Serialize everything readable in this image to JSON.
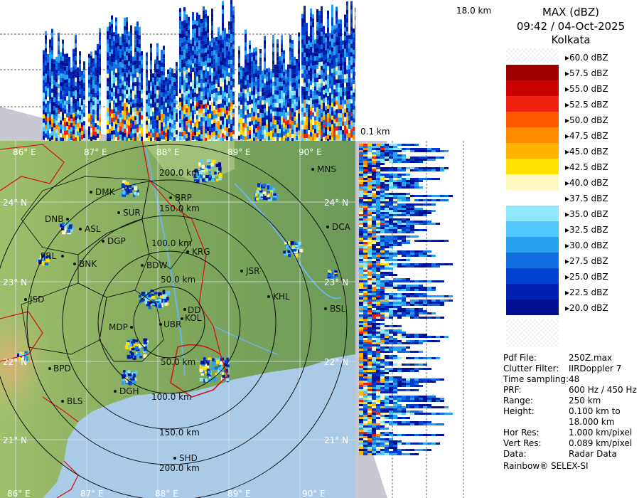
{
  "header": {
    "product": "MAX (dBZ)",
    "datetime": "09:42 / 04-Oct-2025",
    "station": "Kolkata"
  },
  "profile_labels": {
    "max_height": "18.0 km",
    "min_height": "0.1 km"
  },
  "color_scale": [
    {
      "label": "60.0 dBZ",
      "color": "#ffffff"
    },
    {
      "label": "57.5 dBZ",
      "color": "#a00000"
    },
    {
      "label": "55.0 dBZ",
      "color": "#c80000"
    },
    {
      "label": "52.5 dBZ",
      "color": "#f02010"
    },
    {
      "label": "50.0 dBZ",
      "color": "#ff5a00"
    },
    {
      "label": "47.5 dBZ",
      "color": "#ff8c00"
    },
    {
      "label": "45.0 dBZ",
      "color": "#ffb400"
    },
    {
      "label": "42.5 dBZ",
      "color": "#ffe000"
    },
    {
      "label": "40.0 dBZ",
      "color": "#fff8c0"
    },
    {
      "label": "37.5 dBZ",
      "color": "#ffffff"
    },
    {
      "label": "35.0 dBZ",
      "color": "#90e8ff"
    },
    {
      "label": "32.5 dBZ",
      "color": "#50c8ff"
    },
    {
      "label": "30.0 dBZ",
      "color": "#28a0f0"
    },
    {
      "label": "27.5 dBZ",
      "color": "#1070e0"
    },
    {
      "label": "25.0 dBZ",
      "color": "#0040d0"
    },
    {
      "label": "22.5 dBZ",
      "color": "#0020b0"
    },
    {
      "label": "20.0 dBZ",
      "color": "#001090"
    }
  ],
  "info": [
    {
      "key": "Pdf File:",
      "value": "250Z.max"
    },
    {
      "key": "Clutter Filter:",
      "value": "IIRDoppler 7"
    },
    {
      "key": "Time sampling:",
      "value": "48"
    },
    {
      "key": "PRF:",
      "value": "600 Hz / 450 Hz"
    },
    {
      "key": "Range:",
      "value": "250 km"
    },
    {
      "key": "Height:",
      "value": "0.100 km to"
    },
    {
      "key": "",
      "value": "18.000 km"
    },
    {
      "key": "Hor Res:",
      "value": "1.000 km/pixel"
    },
    {
      "key": "Vert Res:",
      "value": "0.089 km/pixel"
    },
    {
      "key": "Data:",
      "value": "Radar Data"
    }
  ],
  "footer": "Rainbow® SELEX-SI",
  "map": {
    "longitudes": [
      "86° E",
      "87° E",
      "88° E",
      "89° E",
      "90° E"
    ],
    "latitudes": [
      "24° N",
      "23° N",
      "22° N",
      "21° N"
    ],
    "range_rings": [
      "50.0 km",
      "100.0 km",
      "150.0 km",
      "200.0 km"
    ],
    "stations": [
      {
        "id": "MNS",
        "label": "MNS"
      },
      {
        "id": "DMK",
        "label": "DMK"
      },
      {
        "id": "BRP",
        "label": "BRP"
      },
      {
        "id": "SUR",
        "label": "SUR"
      },
      {
        "id": "DNB",
        "label": "DNB"
      },
      {
        "id": "ASL",
        "label": "ASL"
      },
      {
        "id": "DGP",
        "label": "DGP"
      },
      {
        "id": "DCA",
        "label": "DCA"
      },
      {
        "id": "PRL",
        "label": "PRL"
      },
      {
        "id": "KRG",
        "label": "KRG"
      },
      {
        "id": "BNK",
        "label": "BNK"
      },
      {
        "id": "BDW",
        "label": "BDW"
      },
      {
        "id": "JSR",
        "label": "JSR"
      },
      {
        "id": "JSD",
        "label": "JSD"
      },
      {
        "id": "KHL",
        "label": "KHL"
      },
      {
        "id": "DD",
        "label": "DD"
      },
      {
        "id": "KOL",
        "label": "KOL"
      },
      {
        "id": "BSL",
        "label": "BSL"
      },
      {
        "id": "MDP",
        "label": "MDP"
      },
      {
        "id": "UBR",
        "label": "UBR"
      },
      {
        "id": "BPD",
        "label": "BPD"
      },
      {
        "id": "DGH",
        "label": "DGH"
      },
      {
        "id": "BLS",
        "label": "BLS"
      },
      {
        "id": "SHD",
        "label": "SHD"
      }
    ]
  }
}
